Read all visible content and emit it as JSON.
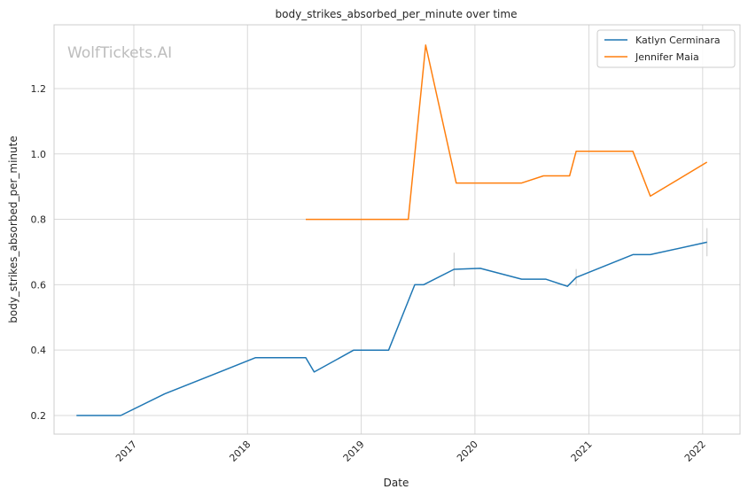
{
  "chart_data": {
    "type": "line",
    "title": "body_strikes_absorbed_per_minute over time",
    "xlabel": "Date",
    "ylabel": "body_strikes_absorbed_per_minute",
    "watermark": "WolfTickets.AI",
    "x_ticks": [
      "2017",
      "2018",
      "2019",
      "2020",
      "2021",
      "2022"
    ],
    "y_ticks": [
      "0.2",
      "0.4",
      "0.6",
      "0.8",
      "1.0",
      "1.2"
    ],
    "xlim": [
      "2016-04-20",
      "2022-05-01"
    ],
    "ylim": [
      0.143,
      1.395
    ],
    "grid": true,
    "legend_position": "top-right",
    "series": [
      {
        "name": "Katlyn Cerminara",
        "color": "#1f77b4",
        "points": [
          [
            "2016-07-01",
            0.2
          ],
          [
            "2016-11-20",
            0.2
          ],
          [
            "2017-04-10",
            0.266
          ],
          [
            "2018-01-27",
            0.377
          ],
          [
            "2018-07-07",
            0.377
          ],
          [
            "2018-08-03",
            0.333
          ],
          [
            "2018-12-08",
            0.4
          ],
          [
            "2019-03-30",
            0.4
          ],
          [
            "2019-06-22",
            0.6
          ],
          [
            "2019-07-20",
            0.6
          ],
          [
            "2019-10-26",
            0.647
          ],
          [
            "2020-01-18",
            0.65
          ],
          [
            "2020-05-30",
            0.617
          ],
          [
            "2020-08-15",
            0.617
          ],
          [
            "2020-10-24",
            0.595
          ],
          [
            "2020-11-21",
            0.622
          ],
          [
            "2021-05-22",
            0.692
          ],
          [
            "2021-07-17",
            0.692
          ],
          [
            "2022-01-15",
            0.73
          ]
        ],
        "error_bars": [
          {
            "x": "2019-10-26",
            "low": 0.595,
            "high": 0.698
          },
          {
            "x": "2020-11-21",
            "low": 0.597,
            "high": 0.648
          },
          {
            "x": "2022-01-15",
            "low": 0.687,
            "high": 0.773
          }
        ]
      },
      {
        "name": "Jennifer Maia",
        "color": "#ff7f0e",
        "points": [
          [
            "2018-07-07",
            0.8
          ],
          [
            "2019-06-01",
            0.8
          ],
          [
            "2019-07-27",
            1.333
          ],
          [
            "2019-11-02",
            0.911
          ],
          [
            "2020-05-30",
            0.911
          ],
          [
            "2020-08-08",
            0.933
          ],
          [
            "2020-10-31",
            0.933
          ],
          [
            "2020-11-21",
            1.008
          ],
          [
            "2021-05-22",
            1.008
          ],
          [
            "2021-07-17",
            0.871
          ],
          [
            "2022-01-15",
            0.975
          ]
        ]
      }
    ]
  }
}
